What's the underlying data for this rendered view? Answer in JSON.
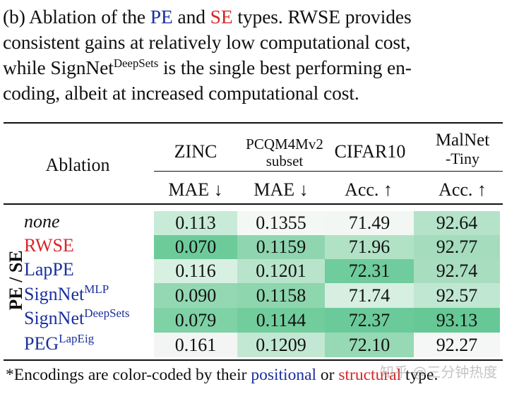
{
  "caption": {
    "line1_pre": "(b) Ablation of the ",
    "pe": "PE",
    "line1_and": " and ",
    "se": "SE",
    "line1_post": " types. RWSE provides",
    "line2": "consistent gains at relatively low computational cost,",
    "line3_pre": "while SignNet",
    "line3_sup": "DeepSets",
    "line3_post": " is the single best performing en-",
    "line4": "coding, albeit at increased computational cost."
  },
  "table": {
    "ablation_header": "Ablation",
    "columns": [
      {
        "name": "ZINC",
        "metric": "MAE ↓"
      },
      {
        "name_line1": "PCQM4Mv2",
        "name_line2": "subset",
        "metric": "MAE ↓"
      },
      {
        "name": "CIFAR10",
        "metric": "Acc. ↑"
      },
      {
        "name_line1": "MalNet",
        "name_line2": "-Tiny",
        "metric": "Acc. ↑"
      }
    ],
    "group_label": "PE / SE",
    "rows": [
      {
        "label": "none",
        "sup": "",
        "type": "none",
        "values": [
          "0.113",
          "0.1355",
          "71.49",
          "92.64"
        ]
      },
      {
        "label": "RWSE",
        "sup": "",
        "type": "structural",
        "values": [
          "0.070",
          "0.1159",
          "71.96",
          "92.77"
        ]
      },
      {
        "label": "LapPE",
        "sup": "",
        "type": "positional",
        "values": [
          "0.116",
          "0.1201",
          "72.31",
          "92.74"
        ]
      },
      {
        "label": "SignNet",
        "sup": "MLP",
        "type": "positional",
        "values": [
          "0.090",
          "0.1158",
          "71.74",
          "92.57"
        ]
      },
      {
        "label": "SignNet",
        "sup": "DeepSets",
        "type": "positional",
        "values": [
          "0.079",
          "0.1144",
          "72.37",
          "93.13"
        ]
      },
      {
        "label": "PEG",
        "sup": "LapEig",
        "type": "positional",
        "values": [
          "0.161",
          "0.1209",
          "72.10",
          "92.27"
        ]
      }
    ]
  },
  "footer": {
    "pre": "*Encodings are color-coded by their ",
    "positional": "positional",
    "or": " or ",
    "structural": "structural",
    "post": " type."
  },
  "watermark": "知乎 @三分钟热度",
  "colors": {
    "positional": "#1a2f9e",
    "structural": "#d4262a"
  }
}
